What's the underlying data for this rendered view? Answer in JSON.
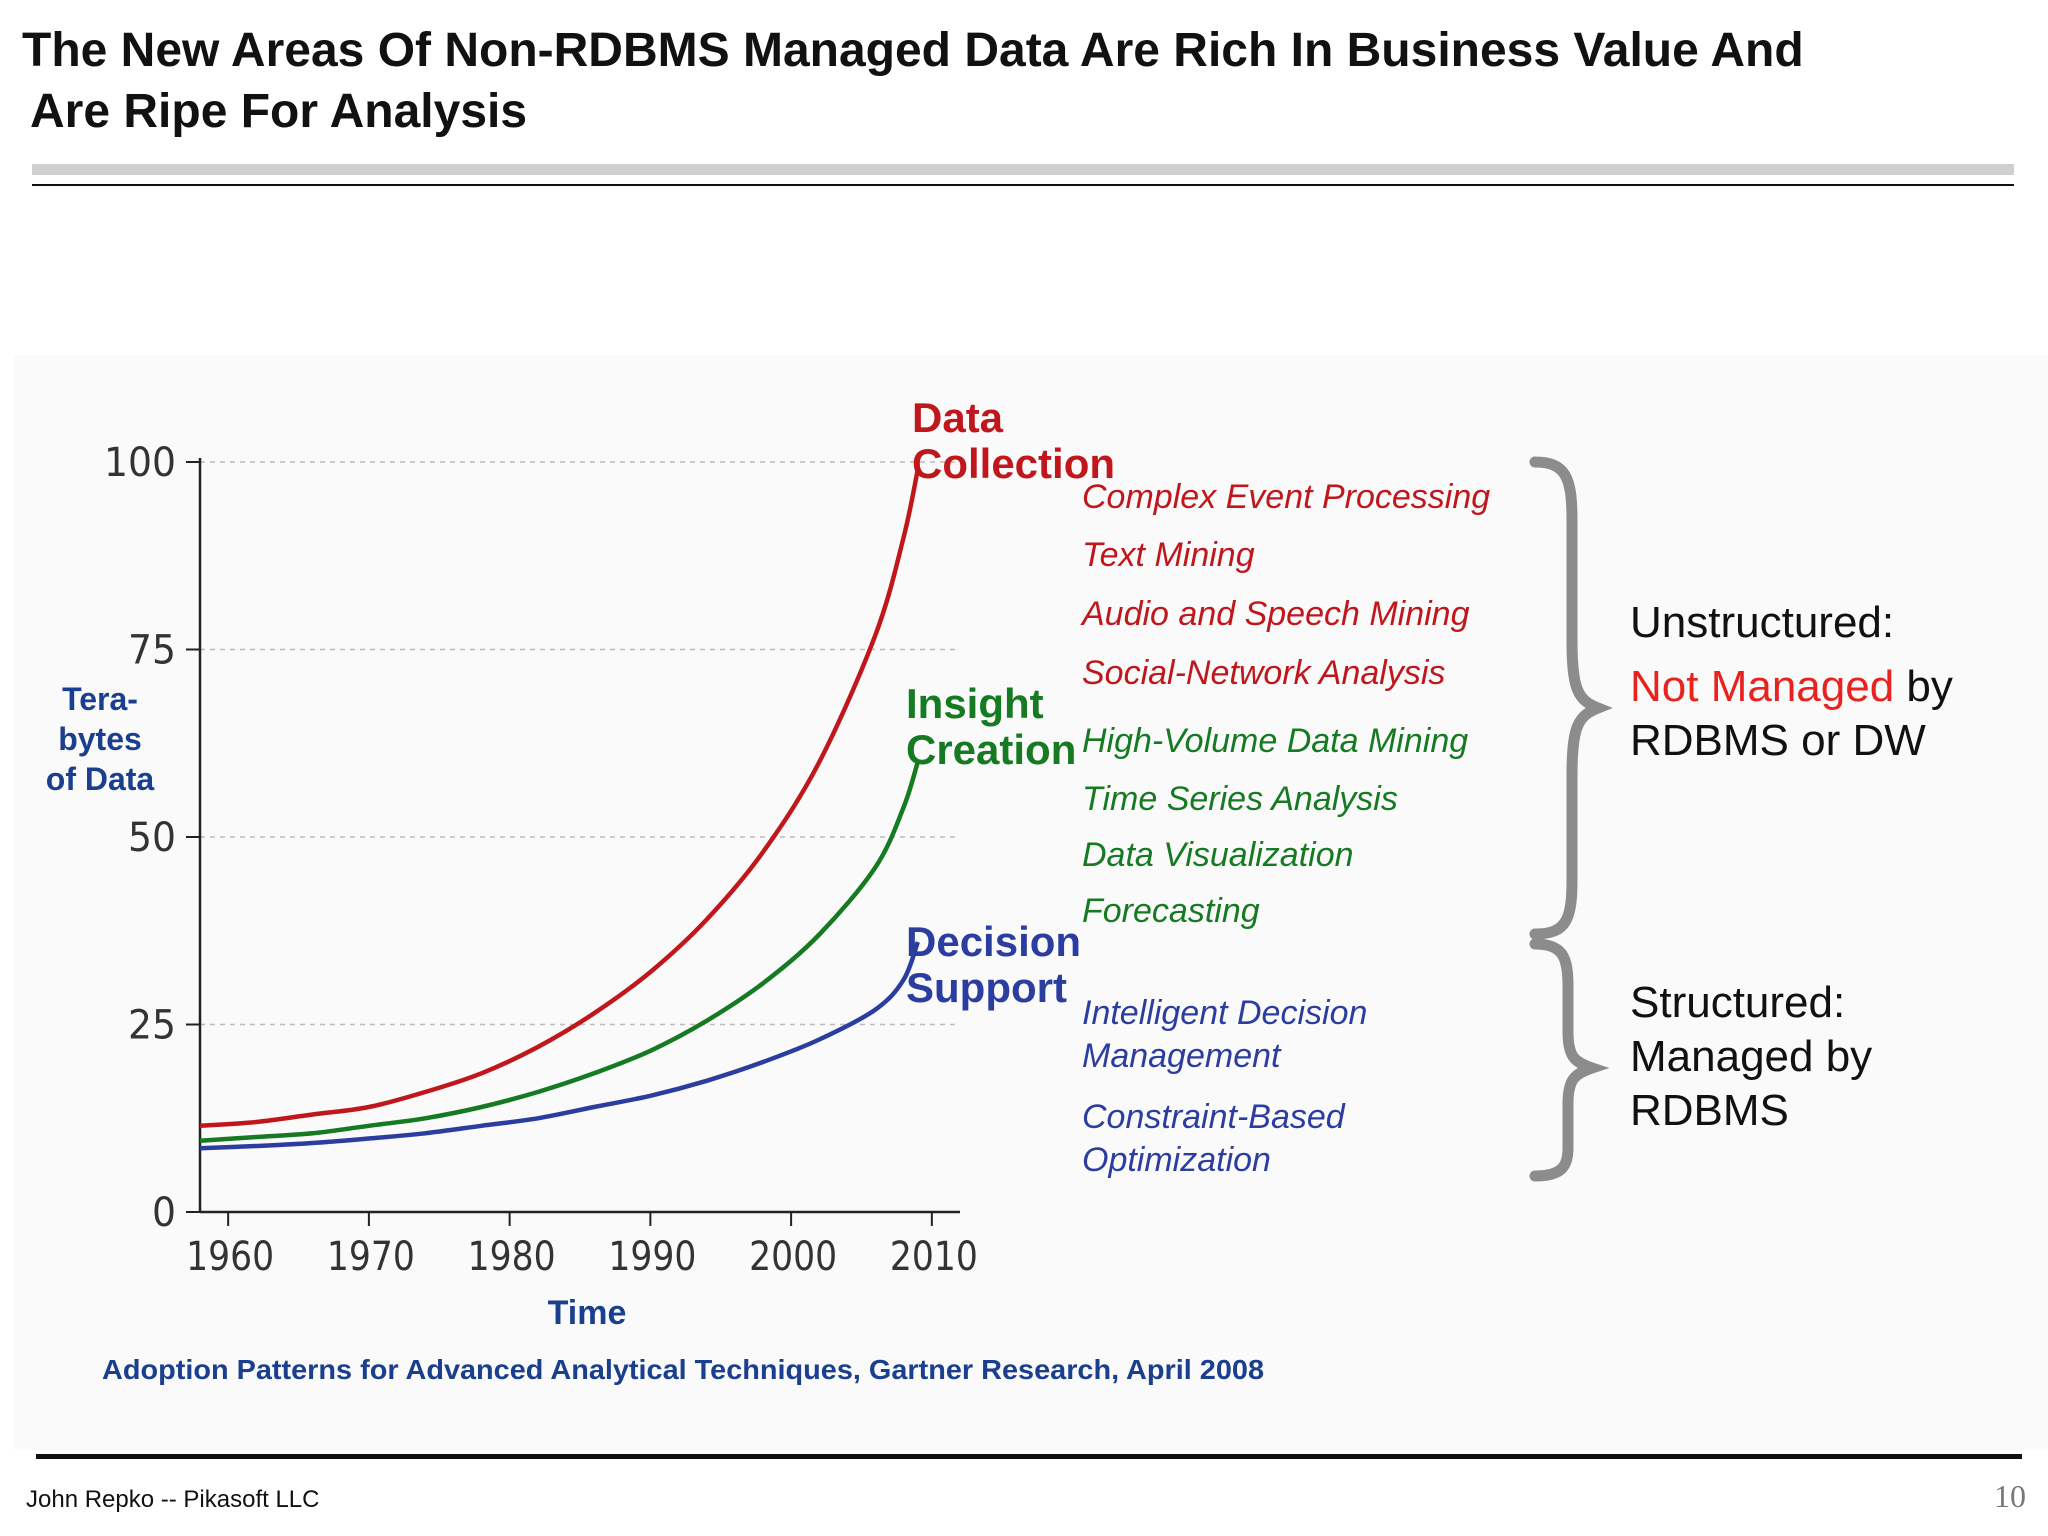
{
  "slide": {
    "title_line1": "The New Areas Of Non-RDBMS Managed Data Are Rich In Business Value And",
    "title_line2": "Are Ripe For Analysis",
    "footer_author": "John Repko -- Pikasoft LLC",
    "page_number": "10"
  },
  "side_notes": {
    "unstructured_heading": "Unstructured:",
    "unstructured_red": "Not Managed",
    "unstructured_rest1": "by",
    "unstructured_rest2": "RDBMS or DW",
    "structured_line1": "Structured:",
    "structured_line2": "Managed by",
    "structured_line3": "RDBMS"
  },
  "colors": {
    "data_collection": "#c0171d",
    "insight_creation": "#157a21",
    "decision_support": "#2b3ea0",
    "axis_label": "#1a3f8f",
    "not_managed": "#e8231f"
  },
  "chart_data": {
    "type": "line",
    "title": "",
    "xlabel": "Time",
    "ylabel": "Tera-bytes of Data",
    "ylabel_lines": [
      "Tera-",
      "bytes",
      "of Data"
    ],
    "xlim": [
      1958,
      2012
    ],
    "ylim": [
      0,
      100
    ],
    "xticks": [
      1960,
      1970,
      1980,
      1990,
      2000,
      2010
    ],
    "yticks": [
      0,
      25,
      50,
      75,
      100
    ],
    "grid": "horizontal dashed",
    "source": "Adoption Patterns for Advanced Analytical Techniques, Gartner Research, April 2008",
    "series": [
      {
        "name": "Data Collection",
        "label_lines": [
          "Data",
          "Collection"
        ],
        "color": "#c0171d",
        "x": [
          1958,
          1962,
          1966,
          1970,
          1974,
          1978,
          1982,
          1986,
          1990,
          1994,
          1998,
          2002,
          2006,
          2008,
          2009
        ],
        "y": [
          11.5,
          12,
          13,
          14,
          16,
          18.5,
          22,
          26.5,
          32,
          39,
          48,
          60,
          77,
          90,
          99
        ],
        "techniques": [
          "Complex Event Processing",
          "Text Mining",
          "Audio and Speech Mining",
          "Social-Network Analysis"
        ]
      },
      {
        "name": "Insight Creation",
        "label_lines": [
          "Insight",
          "Creation"
        ],
        "color": "#157a21",
        "x": [
          1958,
          1962,
          1966,
          1970,
          1974,
          1978,
          1982,
          1986,
          1990,
          1994,
          1998,
          2002,
          2006,
          2008,
          2009
        ],
        "y": [
          9.5,
          10,
          10.5,
          11.5,
          12.5,
          14,
          16,
          18.5,
          21.5,
          25.5,
          30.5,
          37,
          46,
          54,
          60
        ],
        "techniques": [
          "High-Volume Data Mining",
          "Time Series Analysis",
          "Data Visualization",
          "Forecasting"
        ]
      },
      {
        "name": "Decision Support",
        "label_lines": [
          "Decision",
          "Support"
        ],
        "color": "#2b3ea0",
        "x": [
          1958,
          1962,
          1966,
          1970,
          1974,
          1978,
          1982,
          1986,
          1990,
          1994,
          1998,
          2002,
          2006,
          2008,
          2009
        ],
        "y": [
          8.5,
          8.8,
          9.2,
          9.8,
          10.5,
          11.5,
          12.5,
          14,
          15.5,
          17.5,
          20,
          23,
          27,
          31,
          36
        ],
        "techniques": [
          "Intelligent Decision Management",
          "Constraint-Based Optimization"
        ],
        "technique_lines": [
          [
            "Intelligent Decision",
            "Management"
          ],
          [
            "Constraint-Based",
            "Optimization"
          ]
        ]
      }
    ]
  }
}
